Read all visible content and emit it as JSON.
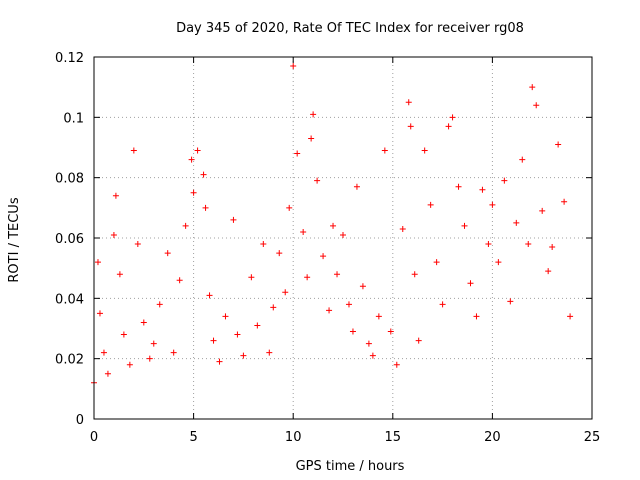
{
  "chart_data": {
    "type": "scatter",
    "title": "Day 345 of 2020, Rate Of TEC Index for receiver rg08",
    "xlabel": "GPS time / hours",
    "ylabel": "ROTI / TECUs",
    "xlim": [
      0,
      25
    ],
    "ylim": [
      0,
      0.12
    ],
    "xticks": [
      0,
      5,
      10,
      15,
      20,
      25
    ],
    "xtick_labels": [
      "0",
      "5",
      "10",
      "15",
      "20",
      "25"
    ],
    "yticks": [
      0,
      0.02,
      0.04,
      0.06,
      0.08,
      0.1,
      0.12
    ],
    "ytick_labels": [
      "0",
      "0.02",
      "0.04",
      "0.06",
      "0.08",
      "0.1",
      "0.12"
    ],
    "grid": true,
    "marker": "plus",
    "color": "#ff0000",
    "series": [
      {
        "x": [
          0.0,
          0.2,
          0.3,
          0.5,
          0.7,
          1.0,
          1.1,
          1.3,
          1.5,
          1.8,
          2.0,
          2.2,
          2.5,
          2.8,
          3.0,
          3.3,
          3.7,
          4.0,
          4.3,
          4.6,
          4.9,
          5.0,
          5.2,
          5.5,
          5.6,
          5.8,
          6.0,
          6.3,
          6.6,
          7.0,
          7.2,
          7.5,
          7.9,
          8.2,
          8.5,
          8.8,
          9.0,
          9.3,
          9.6,
          9.8,
          10.0,
          10.2,
          10.5,
          10.7,
          10.9,
          11.0,
          11.2,
          11.5,
          11.8,
          12.0,
          12.2,
          12.5,
          12.8,
          13.0,
          13.2,
          13.5,
          13.8,
          14.0,
          14.3,
          14.6,
          14.9,
          15.2,
          15.5,
          15.8,
          15.9,
          16.1,
          16.3,
          16.6,
          16.9,
          17.2,
          17.5,
          17.8,
          18.0,
          18.3,
          18.6,
          18.9,
          19.2,
          19.5,
          19.8,
          20.0,
          20.3,
          20.6,
          20.9,
          21.2,
          21.5,
          21.8,
          22.0,
          22.2,
          22.5,
          22.8,
          23.0,
          23.3,
          23.6,
          23.9
        ],
        "y": [
          0.012,
          0.052,
          0.035,
          0.022,
          0.015,
          0.061,
          0.074,
          0.048,
          0.028,
          0.018,
          0.089,
          0.058,
          0.032,
          0.02,
          0.025,
          0.038,
          0.055,
          0.022,
          0.046,
          0.064,
          0.086,
          0.075,
          0.089,
          0.081,
          0.07,
          0.041,
          0.026,
          0.019,
          0.034,
          0.066,
          0.028,
          0.021,
          0.047,
          0.031,
          0.058,
          0.022,
          0.037,
          0.055,
          0.042,
          0.07,
          0.117,
          0.088,
          0.062,
          0.047,
          0.093,
          0.101,
          0.079,
          0.054,
          0.036,
          0.064,
          0.048,
          0.061,
          0.038,
          0.029,
          0.077,
          0.044,
          0.025,
          0.021,
          0.034,
          0.089,
          0.029,
          0.018,
          0.063,
          0.105,
          0.097,
          0.048,
          0.026,
          0.089,
          0.071,
          0.052,
          0.038,
          0.097,
          0.1,
          0.077,
          0.064,
          0.045,
          0.034,
          0.076,
          0.058,
          0.071,
          0.052,
          0.079,
          0.039,
          0.065,
          0.086,
          0.058,
          0.11,
          0.104,
          0.069,
          0.049,
          0.057,
          0.091,
          0.072,
          0.034
        ]
      }
    ]
  }
}
